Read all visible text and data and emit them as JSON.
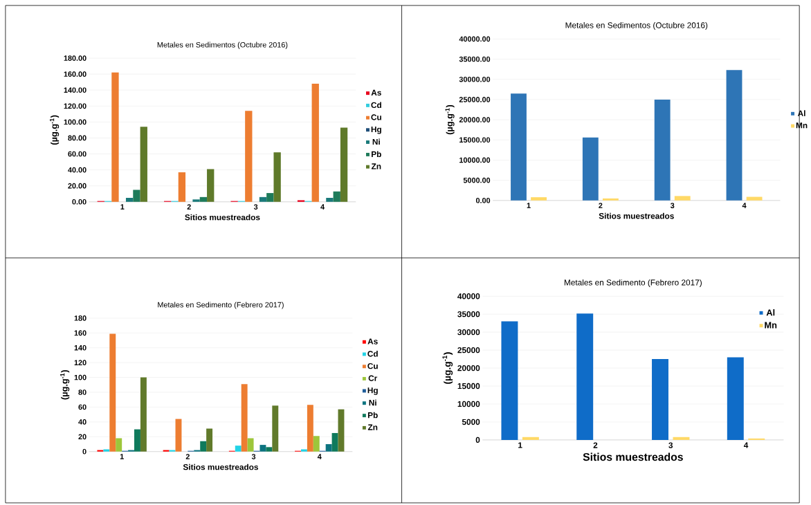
{
  "chart_data": [
    {
      "type": "bar",
      "title": "Metales en Sedimentos (Octubre 2016)",
      "xlabel": "Sitios muestreados",
      "ylabel": "(µg.g$^{-1}$)",
      "categories": [
        "1",
        "2",
        "3",
        "4"
      ],
      "series": [
        {
          "name": "As",
          "color": "#e8001c",
          "values": [
            1,
            1,
            1,
            2
          ]
        },
        {
          "name": "Cd",
          "color": "#33ccdd",
          "values": [
            1,
            1,
            1,
            1
          ]
        },
        {
          "name": "Cu",
          "color": "#ed7d31",
          "values": [
            162,
            37,
            114,
            148
          ]
        },
        {
          "name": "Hg",
          "color": "#1f4e79",
          "values": [
            0,
            0,
            0,
            0
          ]
        },
        {
          "name": "Ni",
          "color": "#1a7a7a",
          "values": [
            5,
            3,
            6,
            5
          ]
        },
        {
          "name": "Pb",
          "color": "#1e7b5a",
          "values": [
            15,
            6,
            11,
            13
          ]
        },
        {
          "name": "Zn",
          "color": "#5f7a2a",
          "values": [
            94,
            41,
            62,
            93
          ]
        }
      ],
      "ylim": [
        0,
        180
      ],
      "yticks": [
        {
          "value": 0,
          "label": "0.00"
        },
        {
          "value": 20,
          "label": "20.00"
        },
        {
          "value": 40,
          "label": "40.00"
        },
        {
          "value": 60,
          "label": "60.00"
        },
        {
          "value": 80,
          "label": "80.00"
        },
        {
          "value": 100,
          "label": "100.00"
        },
        {
          "value": 120,
          "label": "120.00"
        },
        {
          "value": 140,
          "label": "140.00"
        },
        {
          "value": 160,
          "label": "160.00"
        },
        {
          "value": 180,
          "label": "180.00"
        }
      ],
      "grid": "y",
      "legend": "right"
    },
    {
      "type": "bar",
      "title": "Metales en Sedimentos (Octubre 2016)",
      "xlabel": "Sitios muestreados",
      "ylabel": "(µg.g$^{-1}$)",
      "categories": [
        "1",
        "2",
        "3",
        "4"
      ],
      "series": [
        {
          "name": "Al",
          "color": "#2e75b6",
          "values": [
            26500,
            15600,
            25000,
            32300
          ]
        },
        {
          "name": "Mn",
          "color": "#ffd966",
          "values": [
            800,
            500,
            1100,
            900
          ]
        }
      ],
      "ylim": [
        0,
        40000
      ],
      "yticks": [
        {
          "value": 0,
          "label": "0.00"
        },
        {
          "value": 5000,
          "label": "5000.00"
        },
        {
          "value": 10000,
          "label": "10000.00"
        },
        {
          "value": 15000,
          "label": "15000.00"
        },
        {
          "value": 20000,
          "label": "20000.00"
        },
        {
          "value": 25000,
          "label": "25000.00"
        },
        {
          "value": 30000,
          "label": "30000.00"
        },
        {
          "value": 35000,
          "label": "35000.00"
        },
        {
          "value": 40000,
          "label": "40000.00"
        }
      ],
      "grid": "y",
      "legend": "right"
    },
    {
      "type": "bar",
      "title": "Metales en Sedimento (Febrero 2017)",
      "xlabel": "Sitios muestreados",
      "ylabel": "(µg.g$^{-1}$)",
      "categories": [
        "1",
        "2",
        "3",
        "4"
      ],
      "series": [
        {
          "name": "As",
          "color": "#ff0000",
          "values": [
            2,
            2,
            1,
            1
          ]
        },
        {
          "name": "Cd",
          "color": "#22d3e6",
          "values": [
            3,
            2,
            8,
            3
          ]
        },
        {
          "name": "Cu",
          "color": "#ed7d31",
          "values": [
            159,
            44,
            91,
            63
          ]
        },
        {
          "name": "Cr",
          "color": "#9dc63b",
          "values": [
            18,
            0,
            18,
            21
          ]
        },
        {
          "name": "Hg",
          "color": "#1f5c99",
          "values": [
            1,
            1,
            1,
            1
          ]
        },
        {
          "name": "Ni",
          "color": "#0d7480",
          "values": [
            2,
            2,
            9,
            10
          ]
        },
        {
          "name": "Pb",
          "color": "#0f7a5c",
          "values": [
            30,
            14,
            6,
            25
          ]
        },
        {
          "name": "Zn",
          "color": "#617a2b",
          "values": [
            100,
            31,
            62,
            57
          ]
        }
      ],
      "ylim": [
        0,
        180
      ],
      "yticks": [
        0,
        20,
        40,
        60,
        80,
        100,
        120,
        140,
        160,
        180
      ],
      "grid": "y",
      "legend": "right"
    },
    {
      "type": "bar",
      "title": "Metales en Sedimento (Febrero 2017)",
      "xlabel": "Sitios muestreados",
      "ylabel": "(µg.g$^{-1}$)",
      "categories": [
        "1",
        "2",
        "3",
        "4"
      ],
      "series": [
        {
          "name": "Al",
          "color": "#0f6cc8",
          "values": [
            33000,
            35200,
            22500,
            23000
          ]
        },
        {
          "name": "Mn",
          "color": "#ffd966",
          "values": [
            800,
            null,
            800,
            400
          ]
        }
      ],
      "ylim": [
        0,
        40000
      ],
      "yticks": [
        0,
        5000,
        10000,
        15000,
        20000,
        25000,
        30000,
        35000,
        40000
      ],
      "grid": "y",
      "legend": "top right"
    }
  ]
}
